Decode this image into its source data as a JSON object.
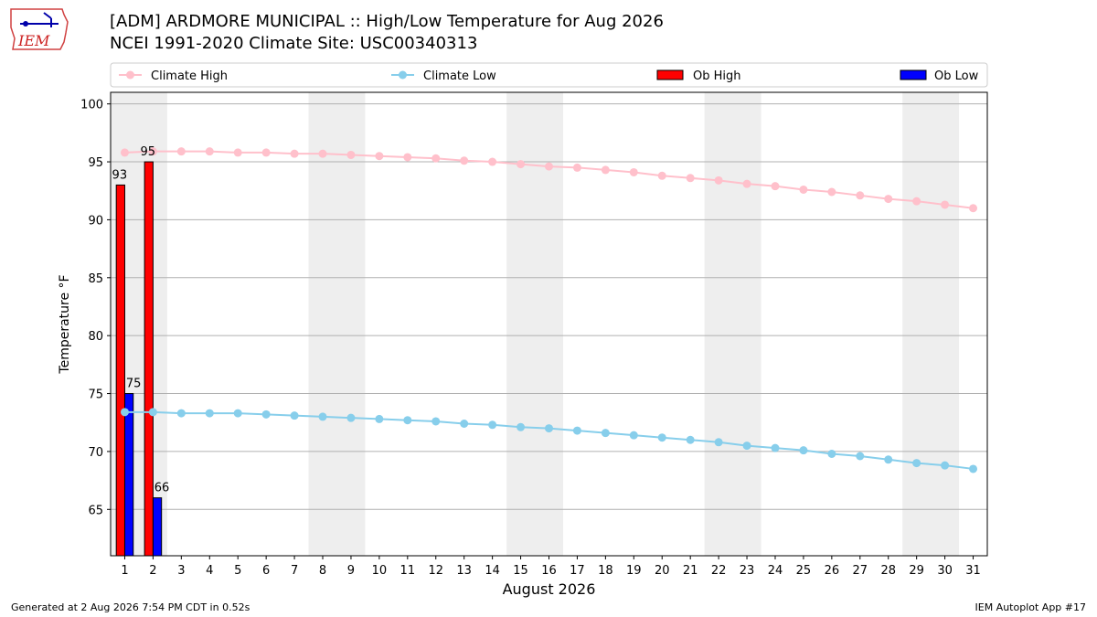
{
  "header": {
    "title_line1": "[ADM] ARDMORE MUNICIPAL :: High/Low Temperature for Aug 2026",
    "title_line2": "NCEI 1991-2020 Climate Site: USC00340313",
    "logo_text": "IEM"
  },
  "footer": {
    "generated": "Generated at 2 Aug 2026 7:54 PM CDT in 0.52s",
    "app": "IEM Autoplot App #17"
  },
  "colors": {
    "climate_high": "#ffc0cb",
    "climate_low": "#87ceeb",
    "ob_high": "#ff0000",
    "ob_low": "#0000ff",
    "weekend_shade": "#eeeeee",
    "grid": "#b0b0b0"
  },
  "chart_data": {
    "type": "bar",
    "xlabel": "August 2026",
    "ylabel": "Temperature °F",
    "ylim": [
      61,
      101
    ],
    "yticks": [
      65,
      70,
      75,
      80,
      85,
      90,
      95,
      100
    ],
    "x": [
      1,
      2,
      3,
      4,
      5,
      6,
      7,
      8,
      9,
      10,
      11,
      12,
      13,
      14,
      15,
      16,
      17,
      18,
      19,
      20,
      21,
      22,
      23,
      24,
      25,
      26,
      27,
      28,
      29,
      30,
      31
    ],
    "xlim": [
      0.5,
      31.5
    ],
    "weekend_bands": [
      [
        0.5,
        2.5
      ],
      [
        7.5,
        9.5
      ],
      [
        14.5,
        16.5
      ],
      [
        21.5,
        23.5
      ],
      [
        28.5,
        30.5
      ]
    ],
    "grid": "horizontal",
    "legend": {
      "placement": "top",
      "entries": [
        "Climate High",
        "Climate Low",
        "Ob High",
        "Ob Low"
      ]
    },
    "series": [
      {
        "name": "Climate High",
        "kind": "line",
        "values": [
          95.8,
          95.9,
          95.9,
          95.9,
          95.8,
          95.8,
          95.7,
          95.7,
          95.6,
          95.5,
          95.4,
          95.3,
          95.1,
          95.0,
          94.8,
          94.6,
          94.5,
          94.3,
          94.1,
          93.8,
          93.6,
          93.4,
          93.1,
          92.9,
          92.6,
          92.4,
          92.1,
          91.8,
          91.6,
          91.3,
          91.0
        ]
      },
      {
        "name": "Climate Low",
        "kind": "line",
        "values": [
          73.4,
          73.4,
          73.3,
          73.3,
          73.3,
          73.2,
          73.1,
          73.0,
          72.9,
          72.8,
          72.7,
          72.6,
          72.4,
          72.3,
          72.1,
          72.0,
          71.8,
          71.6,
          71.4,
          71.2,
          71.0,
          70.8,
          70.5,
          70.3,
          70.1,
          69.8,
          69.6,
          69.3,
          69.0,
          68.8,
          68.5
        ]
      },
      {
        "name": "Ob High",
        "kind": "bar",
        "x": [
          1,
          2
        ],
        "values": [
          93,
          95
        ],
        "labels": [
          "93",
          "95"
        ]
      },
      {
        "name": "Ob Low",
        "kind": "bar",
        "x": [
          1,
          2
        ],
        "values": [
          75,
          66
        ],
        "labels": [
          "75",
          "66"
        ]
      }
    ]
  }
}
